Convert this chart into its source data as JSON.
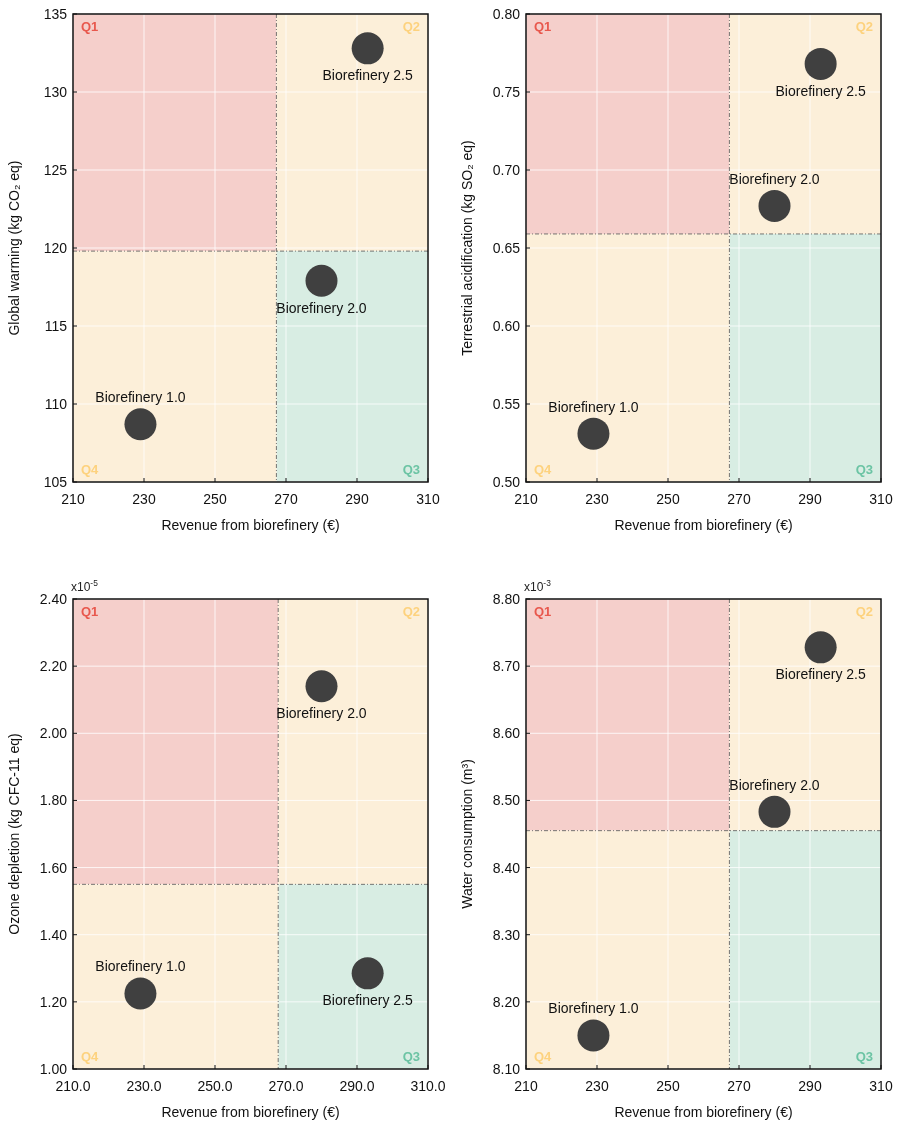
{
  "chart_data": [
    {
      "type": "scatter",
      "xlabel": "Revenue from biorefinery (€)",
      "ylabel": "Global warming (kg CO₂ eq)",
      "xlim": [
        210,
        310
      ],
      "xticks": [
        210,
        230,
        250,
        270,
        290,
        310
      ],
      "ylim": [
        105,
        135
      ],
      "yticks": [
        105,
        110,
        115,
        120,
        125,
        130,
        135
      ],
      "grid": true,
      "marker": "circle",
      "series": [
        {
          "name": "Biorefinery 1.0",
          "color": "#404040",
          "x": [
            229
          ],
          "values": [
            108.7
          ]
        },
        {
          "name": "Biorefinery 2.0",
          "color": "#404040",
          "x": [
            280
          ],
          "values": [
            117.9
          ]
        },
        {
          "name": "Biorefinery 2.5",
          "color": "#404040",
          "x": [
            293
          ],
          "values": [
            132.8
          ]
        }
      ],
      "ref_lines": [
        {
          "axis": "x",
          "value": 267.3,
          "line_style": "dashed"
        },
        {
          "axis": "y",
          "value": 119.8,
          "line_style": "dashed"
        }
      ],
      "annotations": [
        "Q1",
        "Q2",
        "Q3",
        "Q4"
      ]
    },
    {
      "type": "scatter",
      "xlabel": "Revenue from biorefinery (€)",
      "ylabel": "Terrestrial acidification (kg SO₂ eq)",
      "xlim": [
        210,
        310
      ],
      "xticks": [
        210,
        230,
        250,
        270,
        290,
        310
      ],
      "ylim": [
        0.5,
        0.8
      ],
      "yticks": [
        {
          "value": 0.5,
          "label": "0.50"
        },
        {
          "value": 0.55,
          "label": "0.55"
        },
        {
          "value": 0.6,
          "label": "0.60"
        },
        {
          "value": 0.65,
          "label": "0.65"
        },
        {
          "value": 0.7,
          "label": "0.70"
        },
        {
          "value": 0.75,
          "label": "0.75"
        },
        {
          "value": 0.8,
          "label": "0.80"
        }
      ],
      "grid": true,
      "marker": "circle",
      "series": [
        {
          "name": "Biorefinery 1.0",
          "color": "#404040",
          "x": [
            229
          ],
          "values": [
            0.531
          ]
        },
        {
          "name": "Biorefinery 2.0",
          "color": "#404040",
          "x": [
            280
          ],
          "values": [
            0.677
          ]
        },
        {
          "name": "Biorefinery 2.5",
          "color": "#404040",
          "x": [
            293
          ],
          "values": [
            0.768
          ]
        }
      ],
      "ref_lines": [
        {
          "axis": "x",
          "value": 267.3,
          "line_style": "dashed"
        },
        {
          "axis": "y",
          "value": 0.659,
          "line_style": "dashed"
        }
      ],
      "annotations": [
        "Q1",
        "Q2",
        "Q3",
        "Q4"
      ]
    },
    {
      "type": "scatter",
      "xlabel": "Revenue from biorefinery (€)",
      "ylabel": "Ozone depletion (kg CFC-11 eq)",
      "xlim": [
        210,
        310
      ],
      "xticks": [
        {
          "value": 210,
          "label": "210.0"
        },
        {
          "value": 230,
          "label": "230.0"
        },
        {
          "value": 250,
          "label": "250.0"
        },
        {
          "value": 270,
          "label": "270.0"
        },
        {
          "value": 290,
          "label": "290.0"
        },
        {
          "value": 310,
          "label": "310.0"
        }
      ],
      "ylim": [
        1.0,
        2.4
      ],
      "yticks": [
        {
          "value": 1.0,
          "label": "1.00"
        },
        {
          "value": 1.2,
          "label": "1.20"
        },
        {
          "value": 1.4,
          "label": "1.40"
        },
        {
          "value": 1.6,
          "label": "1.60"
        },
        {
          "value": 1.8,
          "label": "1.80"
        },
        {
          "value": 2.0,
          "label": "2.00"
        },
        {
          "value": 2.2,
          "label": "2.20"
        },
        {
          "value": 2.4,
          "label": "2.40"
        }
      ],
      "grid": true,
      "marker": "circle",
      "series": [
        {
          "name": "Biorefinery 1.0",
          "color": "#404040",
          "x": [
            229
          ],
          "values": [
            1.225
          ]
        },
        {
          "name": "Biorefinery 2.0",
          "color": "#404040",
          "x": [
            280
          ],
          "values": [
            2.14
          ]
        },
        {
          "name": "Biorefinery 2.5",
          "color": "#404040",
          "x": [
            293
          ],
          "values": [
            1.285
          ]
        }
      ],
      "ref_lines": [
        {
          "axis": "x",
          "value": 267.8,
          "line_style": "dashed"
        },
        {
          "axis": "y",
          "value": 1.55,
          "line_style": "dashed"
        }
      ],
      "annotations": [
        "Q1",
        "Q2",
        "Q3",
        "Q4",
        "x10$^{-5}$"
      ]
    },
    {
      "type": "scatter",
      "xlabel": "Revenue from biorefinery (€)",
      "ylabel": "Water consumption (m³)",
      "xlim": [
        210,
        310
      ],
      "xticks": [
        210,
        230,
        250,
        270,
        290,
        310
      ],
      "ylim": [
        8.1,
        8.8
      ],
      "yticks": [
        {
          "value": 8.1,
          "label": "8.10"
        },
        {
          "value": 8.2,
          "label": "8.20"
        },
        {
          "value": 8.3,
          "label": "8.30"
        },
        {
          "value": 8.4,
          "label": "8.40"
        },
        {
          "value": 8.5,
          "label": "8.50"
        },
        {
          "value": 8.6,
          "label": "8.60"
        },
        {
          "value": 8.7,
          "label": "8.70"
        },
        {
          "value": 8.8,
          "label": "8.80"
        }
      ],
      "grid": true,
      "marker": "circle",
      "series": [
        {
          "name": "Biorefinery 1.0",
          "color": "#404040",
          "x": [
            229
          ],
          "values": [
            8.15
          ]
        },
        {
          "name": "Biorefinery 2.0",
          "color": "#404040",
          "x": [
            280
          ],
          "values": [
            8.483
          ]
        },
        {
          "name": "Biorefinery 2.5",
          "color": "#404040",
          "x": [
            293
          ],
          "values": [
            8.728
          ]
        }
      ],
      "ref_lines": [
        {
          "axis": "x",
          "value": 267.3,
          "line_style": "dashed"
        },
        {
          "axis": "y",
          "value": 8.455,
          "line_style": "dashed"
        }
      ],
      "annotations": [
        "Q1",
        "Q2",
        "Q3",
        "Q4",
        "x10$^{-3}$"
      ]
    }
  ]
}
